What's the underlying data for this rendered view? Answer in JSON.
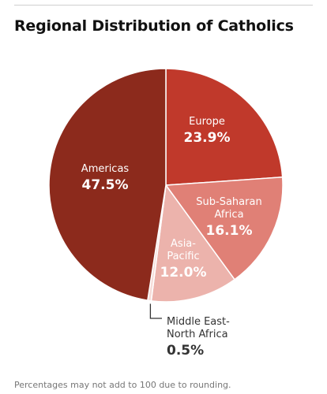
{
  "chart_data": {
    "type": "pie",
    "title": "Regional Distribution of Catholics",
    "slices": [
      {
        "lines": [
          "Europe"
        ],
        "value": 23.9,
        "value_label": "23.9%",
        "color": "#c0392b"
      },
      {
        "lines": [
          "Sub-Saharan",
          "Africa"
        ],
        "value": 16.1,
        "value_label": "16.1%",
        "color": "#e08076"
      },
      {
        "lines": [
          "Asia-",
          "Pacific"
        ],
        "value": 12.0,
        "value_label": "12.0%",
        "color": "#ecb3ac"
      },
      {
        "lines": [
          "Middle East-",
          "North Africa"
        ],
        "value": 0.5,
        "value_label": "0.5%",
        "color": "#f6dcd8"
      },
      {
        "lines": [
          "Americas"
        ],
        "value": 47.5,
        "value_label": "47.5%",
        "color": "#8c2a1c"
      }
    ],
    "start_angle": "12 o'clock, clockwise"
  },
  "footnote": "Percentages may not add to 100 due to rounding."
}
